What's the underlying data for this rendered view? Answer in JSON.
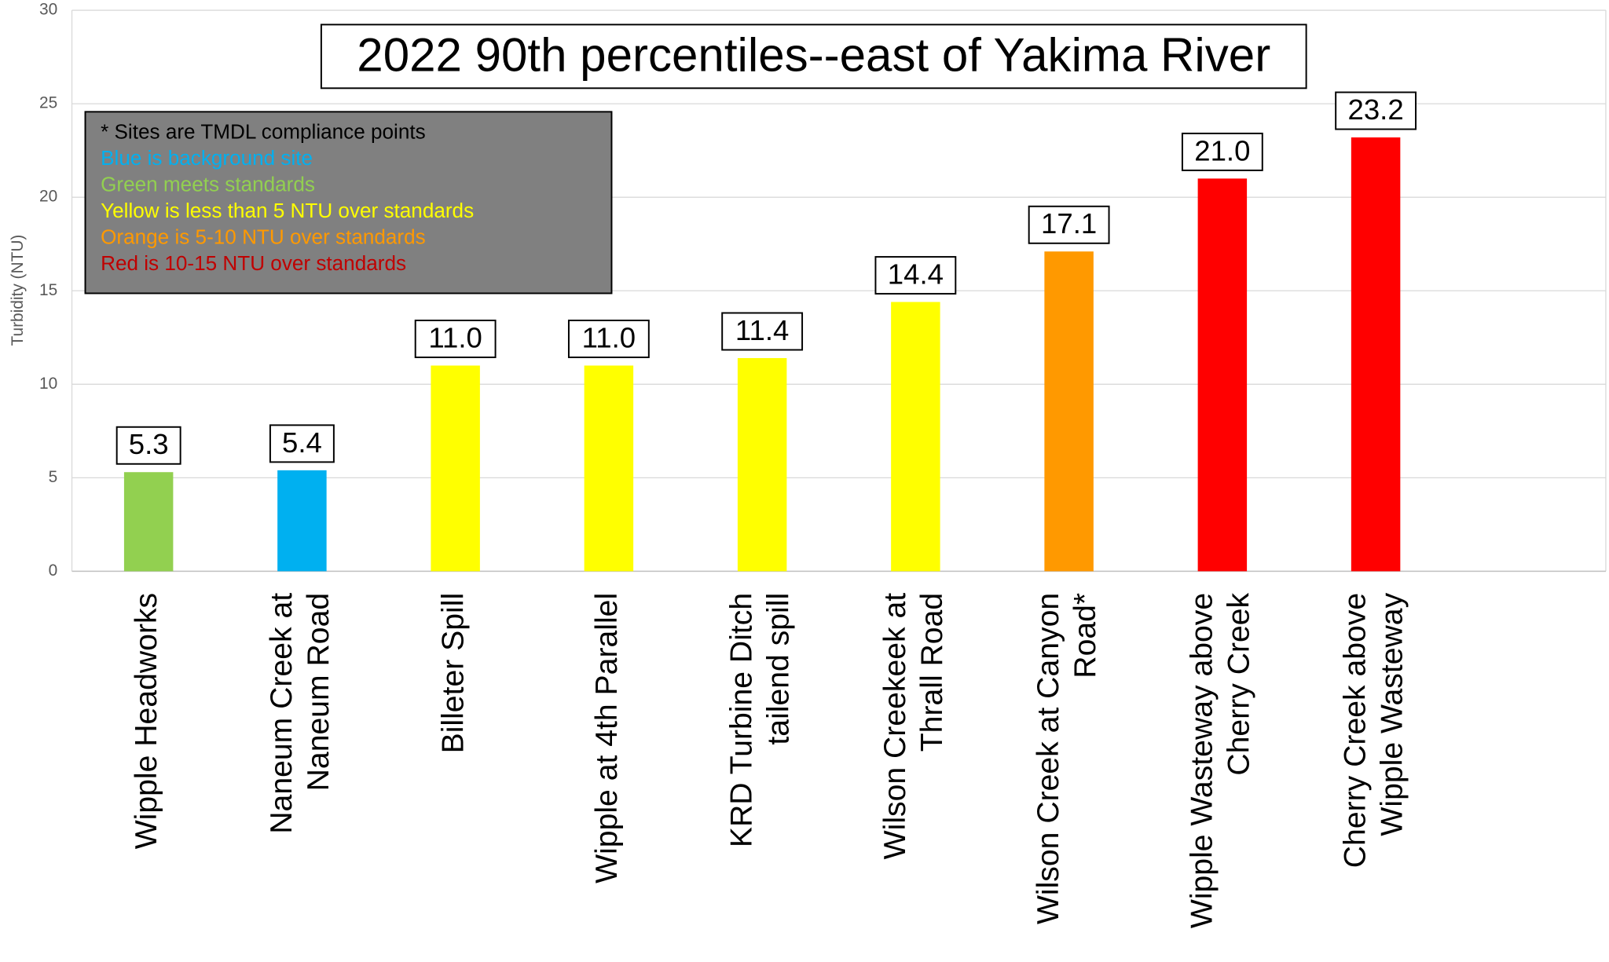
{
  "chart_data": {
    "type": "bar",
    "title": "2022 90th percentiles--east of Yakima River",
    "y_axis_label": "Turbidity (NTU)",
    "categories": [
      "Wipple Headworks",
      "Naneum Creek at\nNaneum Road",
      "Billeter Spill",
      "Wipple at 4th Parallel",
      "KRD Turbine Ditch\ntailend spill",
      "Wilson Creekeek at\nThrall Road",
      "Wilson Creek at Canyon\nRoad*",
      "Wipple Wasteway above\nCherry Creek",
      "Cherry Creek above\nWipple Wasteway",
      null
    ],
    "values": [
      5.3,
      5.4,
      11.0,
      11.0,
      11.4,
      14.4,
      17.1,
      21.0,
      23.2,
      null
    ],
    "value_labels": [
      "5.3",
      "5.4",
      "11.0",
      "11.0",
      "11.4",
      "14.4",
      "17.1",
      "21.0",
      "23.2",
      null
    ],
    "colors": [
      "#92d050",
      "#00b0f0",
      "#ffff00",
      "#ffff00",
      "#ffff00",
      "#ffff00",
      "#ff9900",
      "#ff0000",
      "#ff0000",
      null
    ],
    "ylim": [
      0,
      30
    ],
    "yticks": [
      0,
      5,
      10,
      15,
      20,
      25,
      30
    ],
    "grid": true,
    "notes": [
      {
        "text": "* Sites are TMDL compliance points",
        "color": "#000000"
      },
      {
        "text": "Blue is background site",
        "color": "#00b0f0"
      },
      {
        "text": "Green meets standards",
        "color": "#92d050"
      },
      {
        "text": "Yellow is less than 5 NTU over standards",
        "color": "#ffff00"
      },
      {
        "text": "Orange is 5-10 NTU over standards",
        "color": "#ff9900"
      },
      {
        "text": "Red is 10-15 NTU over standards",
        "color": "#c00000"
      }
    ]
  }
}
